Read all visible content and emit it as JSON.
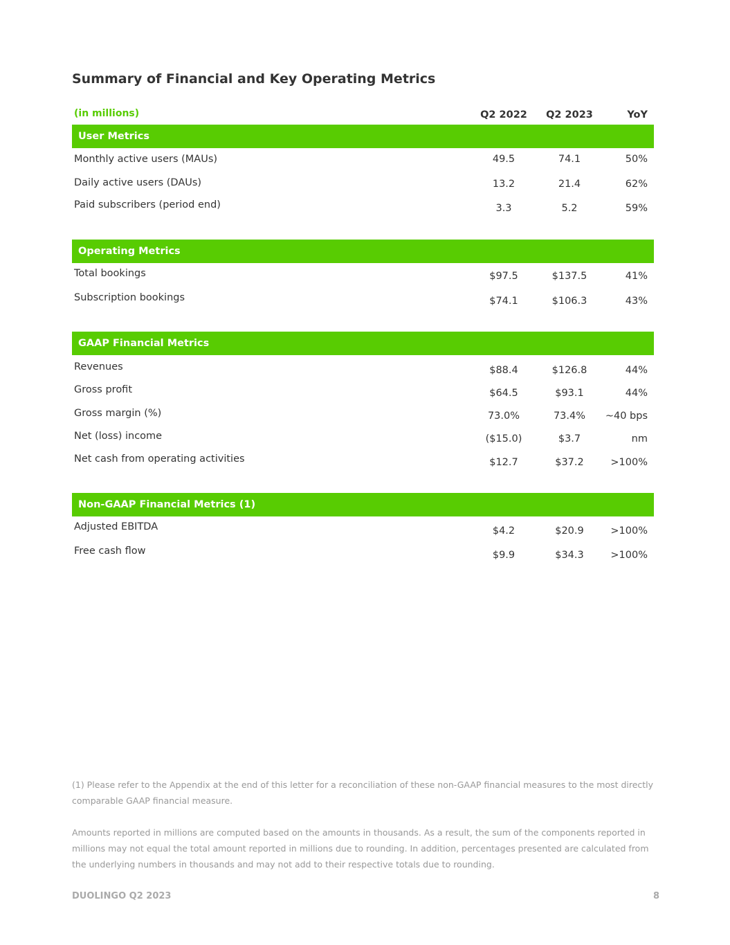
{
  "title": "Summary of Financial and Key Operating Metrics",
  "header": {
    "units": "(in millions)",
    "col1": "Q2 2022",
    "col2": "Q2 2023",
    "col3": "YoY"
  },
  "sections": [
    {
      "title": "User Metrics",
      "rows": [
        {
          "label": "Monthly active users (MAUs)",
          "q2_2022": "49.5",
          "q2_2023": "74.1",
          "yoy": "50%"
        },
        {
          "label": "Daily active users (DAUs)",
          "q2_2022": "13.2",
          "q2_2023": "21.4",
          "yoy": "62%"
        },
        {
          "label": "Paid subscribers (period end)",
          "q2_2022": "3.3",
          "q2_2023": "5.2",
          "yoy": "59%"
        }
      ]
    },
    {
      "title": "Operating Metrics",
      "rows": [
        {
          "label": "Total bookings",
          "q2_2022": "$97.5",
          "q2_2023": "$137.5",
          "yoy": "41%"
        },
        {
          "label": "Subscription bookings",
          "q2_2022": "$74.1",
          "q2_2023": "$106.3",
          "yoy": "43%"
        }
      ]
    },
    {
      "title": "GAAP Financial Metrics",
      "rows": [
        {
          "label": "Revenues",
          "q2_2022": "$88.4",
          "q2_2023": "$126.8",
          "yoy": "44%"
        },
        {
          "label": "Gross profit",
          "q2_2022": "$64.5",
          "q2_2023": "$93.1",
          "yoy": "44%"
        },
        {
          "label": "Gross margin (%)",
          "q2_2022": "73.0%",
          "q2_2023": "73.4%",
          "yoy": "~40 bps"
        },
        {
          "label": "Net (loss) income",
          "q2_2022": "($15.0)",
          "q2_2023": "$3.7",
          "yoy": "nm"
        },
        {
          "label": "Net cash from operating activities",
          "q2_2022": "$12.7",
          "q2_2023": "$37.2",
          "yoy": ">100%"
        }
      ]
    },
    {
      "title": "Non-GAAP Financial Metrics (1)",
      "rows": [
        {
          "label": "Adjusted EBITDA",
          "q2_2022": "$4.2",
          "q2_2023": "$20.9",
          "yoy": ">100%"
        },
        {
          "label": "Free cash flow",
          "q2_2022": "$9.9",
          "q2_2023": "$34.3",
          "yoy": ">100%"
        }
      ]
    }
  ],
  "footnotes": [
    "(1) Please refer to the Appendix at the end of this letter for a reconciliation of these non-GAAP financial measures to the most directly comparable GAAP financial measure.",
    "Amounts reported in millions are computed based on the amounts in thousands. As a result, the sum of the components reported in millions may not equal the total amount reported in millions due to rounding. In addition, percentages presented are calculated from the underlying numbers in thousands and may not add to their respective totals due to rounding."
  ],
  "footer": {
    "left": "DUOLINGO Q2 2023",
    "page_number": "8"
  },
  "colors": {
    "accent": "#58cc02",
    "text": "#333333",
    "muted": "#999999"
  }
}
